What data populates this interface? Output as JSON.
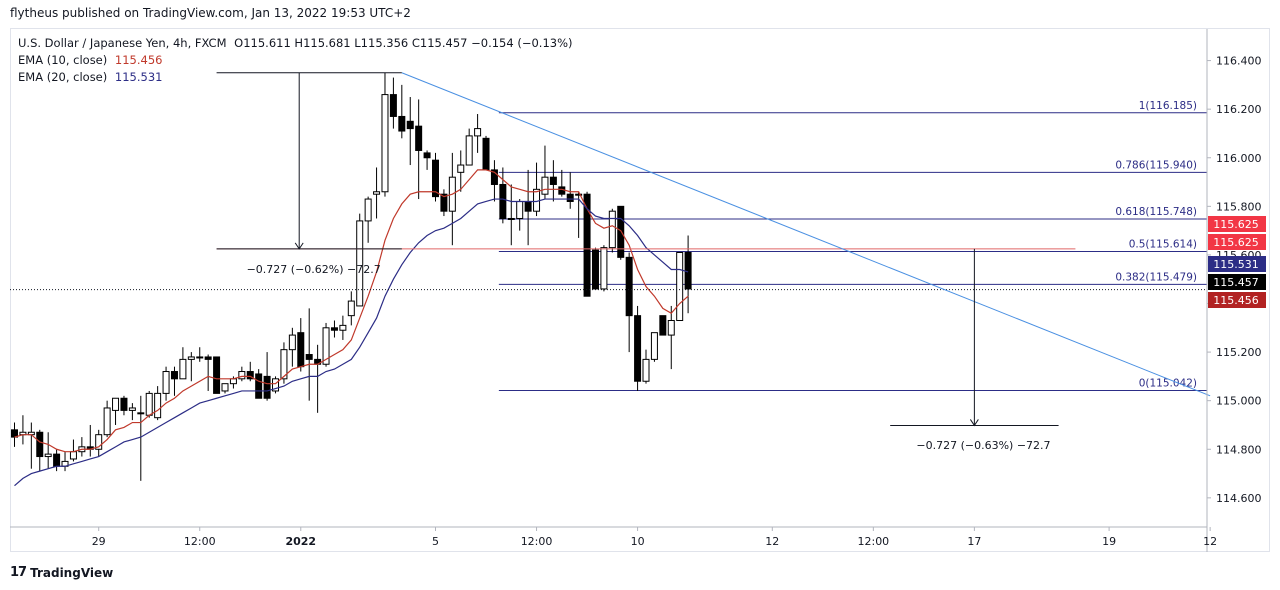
{
  "header": {
    "published": "flytheus published on TradingView.com, Jan 13, 2022 19:53 UTC+2"
  },
  "legend": {
    "symbol": "U.S. Dollar / Japanese Yen, 4h, FXCM",
    "ohlc": "O115.611 H115.681 L115.356 C115.457 −0.154 (−0.13%)",
    "ema10_label": "EMA (10, close)",
    "ema10_value": "115.456",
    "ema20_label": "EMA (20, close)",
    "ema20_value": "115.531"
  },
  "footer": {
    "brand_mark": "17",
    "brand": "TradingView"
  },
  "annotations": {
    "range_top": "−0.727 (−0.62%) −72.7",
    "range_bottom": "−0.727 (−0.63%) −72.7"
  },
  "colors": {
    "up": "#ffffff",
    "down": "#000000",
    "outline": "#000000",
    "ema10": "#c0392b",
    "ema20": "#2c2d86",
    "trend": "#4a90e2",
    "fib": "#2c2d86",
    "red_line": "#e06666"
  },
  "chart_data": {
    "type": "candlestick",
    "title": "U.S. Dollar / Japanese Yen, 4h, FXCM",
    "ylim": [
      114.48,
      116.53
    ],
    "y_ticks": [
      114.6,
      114.8,
      115.0,
      115.2,
      115.4,
      115.6,
      115.8,
      116.0,
      116.2,
      116.4
    ],
    "y_tick_labels": [
      "114.600",
      "114.800",
      "115.000",
      "115.200",
      "115.400",
      "115.600",
      "115.800",
      "116.000",
      "116.200",
      "116.400"
    ],
    "x_ticks": [
      {
        "bar": 10,
        "label": "29"
      },
      {
        "bar": 22,
        "label": "12:00"
      },
      {
        "bar": 34,
        "label": "2022"
      },
      {
        "bar": 50,
        "label": "5"
      },
      {
        "bar": 62,
        "label": "12:00"
      },
      {
        "bar": 74,
        "label": "10"
      },
      {
        "bar": 90,
        "label": "12"
      },
      {
        "bar": 102,
        "label": "12:00"
      },
      {
        "bar": 114,
        "label": "17"
      },
      {
        "bar": 130,
        "label": "19"
      },
      {
        "bar": 142,
        "label": "12"
      }
    ],
    "bars_visible": 143,
    "candles": [
      {
        "o": 114.88,
        "h": 114.91,
        "l": 114.81,
        "c": 114.85
      },
      {
        "o": 114.86,
        "h": 114.94,
        "l": 114.82,
        "c": 114.87
      },
      {
        "o": 114.86,
        "h": 114.91,
        "l": 114.72,
        "c": 114.87
      },
      {
        "o": 114.87,
        "h": 114.88,
        "l": 114.71,
        "c": 114.77
      },
      {
        "o": 114.77,
        "h": 114.87,
        "l": 114.72,
        "c": 114.78
      },
      {
        "o": 114.78,
        "h": 114.8,
        "l": 114.71,
        "c": 114.73
      },
      {
        "o": 114.73,
        "h": 114.79,
        "l": 114.71,
        "c": 114.75
      },
      {
        "o": 114.76,
        "h": 114.84,
        "l": 114.75,
        "c": 114.79
      },
      {
        "o": 114.79,
        "h": 114.85,
        "l": 114.77,
        "c": 114.81
      },
      {
        "o": 114.81,
        "h": 114.9,
        "l": 114.77,
        "c": 114.8
      },
      {
        "o": 114.8,
        "h": 114.88,
        "l": 114.77,
        "c": 114.86
      },
      {
        "o": 114.86,
        "h": 115.0,
        "l": 114.85,
        "c": 114.97
      },
      {
        "o": 114.96,
        "h": 115.01,
        "l": 114.9,
        "c": 115.01
      },
      {
        "o": 115.01,
        "h": 115.02,
        "l": 114.94,
        "c": 114.96
      },
      {
        "o": 114.96,
        "h": 114.99,
        "l": 114.92,
        "c": 114.97
      },
      {
        "o": 114.95,
        "h": 115.02,
        "l": 114.67,
        "c": 114.95
      },
      {
        "o": 114.94,
        "h": 115.04,
        "l": 114.93,
        "c": 115.03
      },
      {
        "o": 114.93,
        "h": 115.06,
        "l": 114.92,
        "c": 115.03
      },
      {
        "o": 115.03,
        "h": 115.14,
        "l": 115.0,
        "c": 115.12
      },
      {
        "o": 115.12,
        "h": 115.14,
        "l": 115.02,
        "c": 115.09
      },
      {
        "o": 115.09,
        "h": 115.22,
        "l": 115.09,
        "c": 115.17
      },
      {
        "o": 115.17,
        "h": 115.2,
        "l": 115.08,
        "c": 115.18
      },
      {
        "o": 115.18,
        "h": 115.22,
        "l": 115.16,
        "c": 115.18
      },
      {
        "o": 115.18,
        "h": 115.19,
        "l": 115.04,
        "c": 115.17
      },
      {
        "o": 115.18,
        "h": 115.18,
        "l": 115.03,
        "c": 115.03
      },
      {
        "o": 115.04,
        "h": 115.07,
        "l": 115.03,
        "c": 115.07
      },
      {
        "o": 115.07,
        "h": 115.1,
        "l": 115.05,
        "c": 115.09
      },
      {
        "o": 115.09,
        "h": 115.14,
        "l": 115.08,
        "c": 115.12
      },
      {
        "o": 115.12,
        "h": 115.16,
        "l": 115.08,
        "c": 115.09
      },
      {
        "o": 115.11,
        "h": 115.13,
        "l": 115.02,
        "c": 115.01
      },
      {
        "o": 115.1,
        "h": 115.2,
        "l": 115.0,
        "c": 115.01
      },
      {
        "o": 115.04,
        "h": 115.1,
        "l": 115.03,
        "c": 115.09
      },
      {
        "o": 115.09,
        "h": 115.24,
        "l": 115.07,
        "c": 115.21
      },
      {
        "o": 115.21,
        "h": 115.3,
        "l": 115.14,
        "c": 115.27
      },
      {
        "o": 115.28,
        "h": 115.34,
        "l": 115.12,
        "c": 115.14
      },
      {
        "o": 115.19,
        "h": 115.38,
        "l": 115.0,
        "c": 115.17
      },
      {
        "o": 115.17,
        "h": 115.23,
        "l": 114.95,
        "c": 115.15
      },
      {
        "o": 115.15,
        "h": 115.32,
        "l": 115.14,
        "c": 115.3
      },
      {
        "o": 115.3,
        "h": 115.33,
        "l": 115.26,
        "c": 115.29
      },
      {
        "o": 115.29,
        "h": 115.35,
        "l": 115.25,
        "c": 115.31
      },
      {
        "o": 115.35,
        "h": 115.45,
        "l": 115.31,
        "c": 115.41
      },
      {
        "o": 115.39,
        "h": 115.77,
        "l": 115.41,
        "c": 115.74
      },
      {
        "o": 115.74,
        "h": 115.84,
        "l": 115.65,
        "c": 115.83
      },
      {
        "o": 115.85,
        "h": 115.96,
        "l": 115.75,
        "c": 115.86
      },
      {
        "o": 115.86,
        "h": 116.35,
        "l": 115.84,
        "c": 116.26
      },
      {
        "o": 116.26,
        "h": 116.33,
        "l": 116.12,
        "c": 116.17
      },
      {
        "o": 116.17,
        "h": 116.3,
        "l": 116.08,
        "c": 116.11
      },
      {
        "o": 116.15,
        "h": 116.25,
        "l": 115.97,
        "c": 116.12
      },
      {
        "o": 116.13,
        "h": 116.24,
        "l": 115.83,
        "c": 116.03
      },
      {
        "o": 116.02,
        "h": 116.03,
        "l": 115.95,
        "c": 116.0
      },
      {
        "o": 115.99,
        "h": 116.02,
        "l": 115.82,
        "c": 115.84
      },
      {
        "o": 115.85,
        "h": 115.87,
        "l": 115.76,
        "c": 115.78
      },
      {
        "o": 115.78,
        "h": 116.02,
        "l": 115.64,
        "c": 115.92
      },
      {
        "o": 115.94,
        "h": 116.03,
        "l": 115.86,
        "c": 115.97
      },
      {
        "o": 115.97,
        "h": 116.12,
        "l": 115.97,
        "c": 116.09
      },
      {
        "o": 116.09,
        "h": 116.18,
        "l": 116.02,
        "c": 116.12
      },
      {
        "o": 116.08,
        "h": 116.09,
        "l": 115.95,
        "c": 115.95
      },
      {
        "o": 115.95,
        "h": 115.99,
        "l": 115.82,
        "c": 115.89
      },
      {
        "o": 115.89,
        "h": 115.96,
        "l": 115.73,
        "c": 115.75
      },
      {
        "o": 115.75,
        "h": 115.89,
        "l": 115.64,
        "c": 115.75
      },
      {
        "o": 115.75,
        "h": 115.83,
        "l": 115.7,
        "c": 115.82
      },
      {
        "o": 115.82,
        "h": 115.95,
        "l": 115.64,
        "c": 115.78
      },
      {
        "o": 115.78,
        "h": 115.98,
        "l": 115.76,
        "c": 115.87
      },
      {
        "o": 115.85,
        "h": 116.05,
        "l": 115.83,
        "c": 115.92
      },
      {
        "o": 115.92,
        "h": 115.99,
        "l": 115.82,
        "c": 115.89
      },
      {
        "o": 115.88,
        "h": 115.95,
        "l": 115.84,
        "c": 115.85
      },
      {
        "o": 115.85,
        "h": 115.94,
        "l": 115.79,
        "c": 115.82
      },
      {
        "o": 115.85,
        "h": 115.86,
        "l": 115.67,
        "c": 115.85
      },
      {
        "o": 115.85,
        "h": 115.86,
        "l": 115.45,
        "c": 115.43
      },
      {
        "o": 115.62,
        "h": 115.63,
        "l": 115.46,
        "c": 115.46
      },
      {
        "o": 115.46,
        "h": 115.64,
        "l": 115.45,
        "c": 115.63
      },
      {
        "o": 115.63,
        "h": 115.79,
        "l": 115.61,
        "c": 115.78
      },
      {
        "o": 115.8,
        "h": 115.79,
        "l": 115.58,
        "c": 115.59
      },
      {
        "o": 115.59,
        "h": 115.61,
        "l": 115.2,
        "c": 115.35
      },
      {
        "o": 115.35,
        "h": 115.39,
        "l": 115.04,
        "c": 115.08
      },
      {
        "o": 115.08,
        "h": 115.21,
        "l": 115.07,
        "c": 115.17
      },
      {
        "o": 115.17,
        "h": 115.28,
        "l": 115.16,
        "c": 115.28
      },
      {
        "o": 115.35,
        "h": 115.35,
        "l": 115.27,
        "c": 115.27
      },
      {
        "o": 115.27,
        "h": 115.39,
        "l": 115.13,
        "c": 115.33
      },
      {
        "o": 115.33,
        "h": 115.61,
        "l": 115.34,
        "c": 115.61
      },
      {
        "o": 115.61,
        "h": 115.68,
        "l": 115.36,
        "c": 115.46
      }
    ],
    "ema10": [
      114.85,
      114.86,
      114.86,
      114.83,
      114.82,
      114.8,
      114.79,
      114.79,
      114.8,
      114.8,
      114.81,
      114.84,
      114.88,
      114.89,
      114.91,
      114.91,
      114.94,
      114.96,
      114.99,
      115.01,
      115.04,
      115.06,
      115.08,
      115.1,
      115.09,
      115.09,
      115.09,
      115.1,
      115.1,
      115.08,
      115.07,
      115.07,
      115.1,
      115.13,
      115.14,
      115.15,
      115.15,
      115.17,
      115.19,
      115.21,
      115.25,
      115.34,
      115.43,
      115.53,
      115.66,
      115.75,
      115.81,
      115.85,
      115.86,
      115.86,
      115.86,
      115.84,
      115.85,
      115.87,
      115.91,
      115.95,
      115.95,
      115.94,
      115.91,
      115.88,
      115.87,
      115.86,
      115.86,
      115.87,
      115.87,
      115.87,
      115.86,
      115.86,
      115.79,
      115.73,
      115.71,
      115.72,
      115.7,
      115.64,
      115.54,
      115.47,
      115.43,
      115.38,
      115.36,
      115.4,
      115.43
    ],
    "ema20": [
      114.65,
      114.68,
      114.7,
      114.71,
      114.72,
      114.73,
      114.73,
      114.74,
      114.75,
      114.76,
      114.77,
      114.79,
      114.81,
      114.83,
      114.84,
      114.85,
      114.87,
      114.89,
      114.91,
      114.93,
      114.95,
      114.97,
      114.99,
      115.0,
      115.01,
      115.02,
      115.03,
      115.04,
      115.04,
      115.04,
      115.04,
      115.05,
      115.06,
      115.08,
      115.09,
      115.1,
      115.1,
      115.12,
      115.13,
      115.15,
      115.17,
      115.22,
      115.28,
      115.34,
      115.43,
      115.5,
      115.56,
      115.61,
      115.65,
      115.68,
      115.7,
      115.71,
      115.73,
      115.75,
      115.78,
      115.81,
      115.82,
      115.83,
      115.83,
      115.82,
      115.82,
      115.82,
      115.82,
      115.83,
      115.83,
      115.83,
      115.83,
      115.83,
      115.79,
      115.76,
      115.75,
      115.75,
      115.75,
      115.72,
      115.68,
      115.63,
      115.6,
      115.57,
      115.54,
      115.54,
      115.53
    ],
    "fib_levels": [
      {
        "ratio": "1",
        "value": 116.185,
        "label": "1(116.185)"
      },
      {
        "ratio": "0.786",
        "value": 115.94,
        "label": "0.786(115.940)"
      },
      {
        "ratio": "0.618",
        "value": 115.748,
        "label": "0.618(115.748)"
      },
      {
        "ratio": "0.5",
        "value": 115.614,
        "label": "0.5(115.614)"
      },
      {
        "ratio": "0.382",
        "value": 115.479,
        "label": "0.382(115.479)"
      },
      {
        "ratio": "0",
        "value": 115.042,
        "label": "0(115.042)"
      }
    ],
    "fib_start_bar": 58,
    "trendline": {
      "bar1": 46,
      "price1": 116.35,
      "bar2": 142,
      "price2": 115.02
    },
    "red_hline": {
      "price": 115.625,
      "bar1": 24,
      "bar2": 126
    },
    "measure_top": {
      "bar_start": 24,
      "bar_end": 46,
      "price_from": 116.35,
      "price_to": 115.625
    },
    "measure_bottom": {
      "bar": 114,
      "bar_left": 104,
      "bar_right": 124,
      "price_from": 115.625,
      "price_to": 114.898
    },
    "last_close": 115.457,
    "price_tags": [
      {
        "text": "115.625",
        "color": "#f23645"
      },
      {
        "text": "115.625",
        "color": "#f23645"
      },
      {
        "text": "115.531",
        "color": "#2c2d86"
      },
      {
        "text": "115.457",
        "color": "#000000"
      },
      {
        "text": "115.456",
        "color": "#b22222"
      }
    ]
  }
}
